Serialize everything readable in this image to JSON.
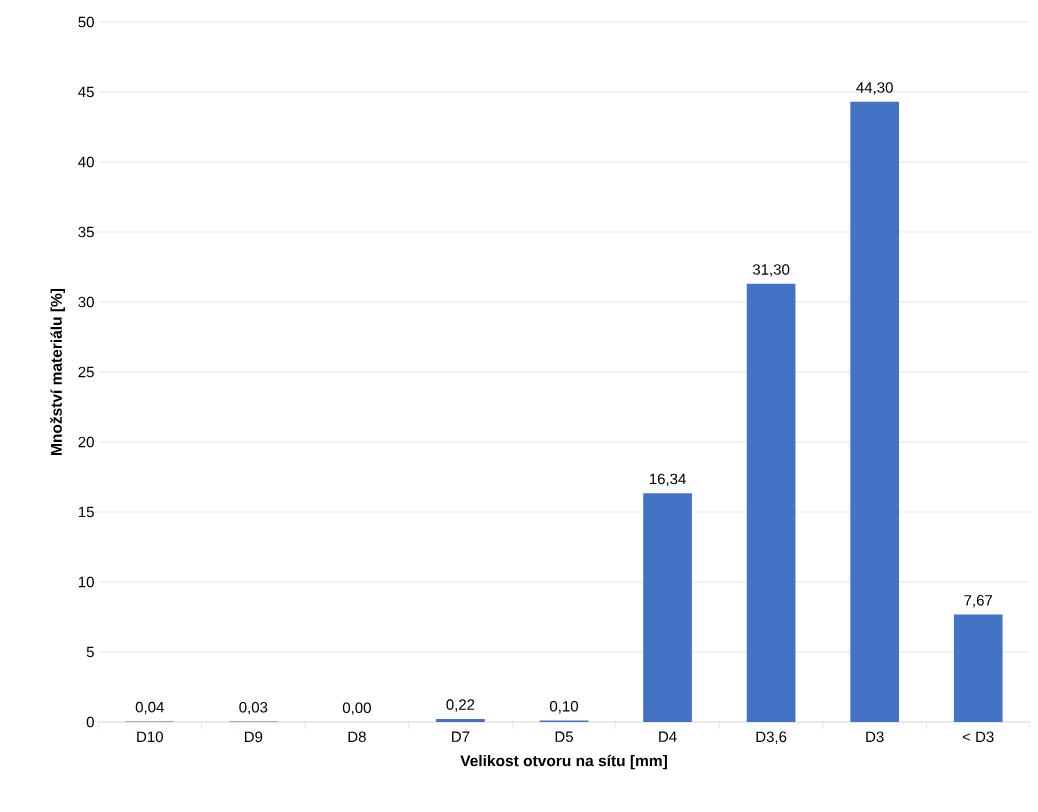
{
  "chart_data": {
    "type": "bar",
    "xlabel": "Velikost otvoru na sítu [mm]",
    "ylabel": "Množství materiálu [%]",
    "categories": [
      "D10",
      "D9",
      "D8",
      "D7",
      "D5",
      "D4",
      "D3,6",
      "D3",
      "< D3"
    ],
    "values": [
      0.04,
      0.03,
      0.0,
      0.22,
      0.1,
      16.34,
      31.3,
      44.3,
      7.67
    ],
    "value_labels": [
      "0,04",
      "0,03",
      "0,00",
      "0,22",
      "0,10",
      "16,34",
      "31,30",
      "44,30",
      "7,67"
    ],
    "color": "#4472c4",
    "ylim": [
      0,
      50
    ],
    "yticks": [
      0,
      5,
      10,
      15,
      20,
      25,
      30,
      35,
      40,
      45,
      50
    ],
    "grid": "y"
  }
}
